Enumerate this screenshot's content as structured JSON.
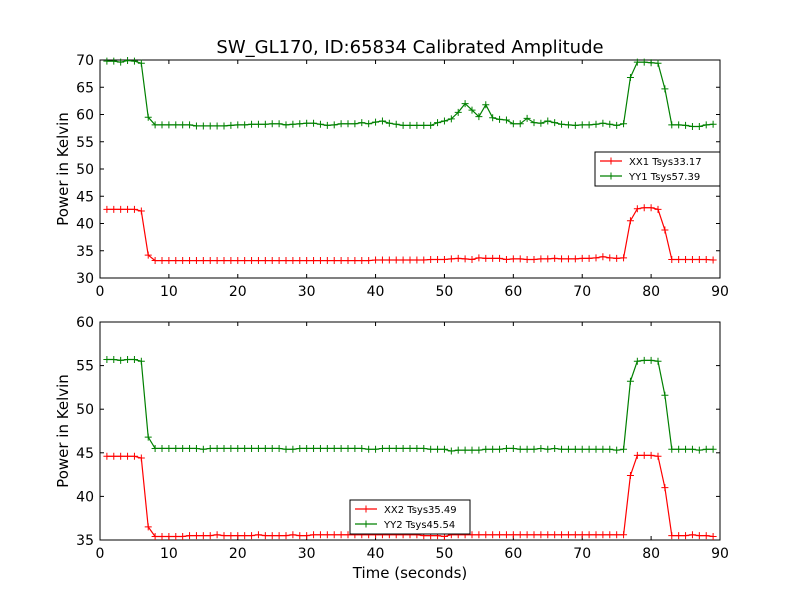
{
  "title": "SW_GL170, ID:65834 Calibrated Amplitude",
  "chart_data": [
    {
      "type": "line",
      "title": "SW_GL170, ID:65834 Calibrated Amplitude",
      "xlabel": "",
      "ylabel": "Power in Kelvin",
      "xlim": [
        0,
        90
      ],
      "ylim": [
        30,
        70
      ],
      "xticks": [
        0,
        10,
        20,
        30,
        40,
        50,
        60,
        70,
        80,
        90
      ],
      "yticks": [
        30,
        35,
        40,
        45,
        50,
        55,
        60,
        65,
        70
      ],
      "grid": false,
      "legend_position": "right",
      "series": [
        {
          "name": "XX1 Tsys33.17",
          "color": "#ff0000",
          "x": [
            1,
            2,
            3,
            4,
            5,
            6,
            7,
            8,
            9,
            10,
            11,
            12,
            13,
            14,
            15,
            16,
            17,
            18,
            19,
            20,
            21,
            22,
            23,
            24,
            25,
            26,
            27,
            28,
            29,
            30,
            31,
            32,
            33,
            34,
            35,
            36,
            37,
            38,
            39,
            40,
            41,
            42,
            43,
            44,
            45,
            46,
            47,
            48,
            49,
            50,
            51,
            52,
            53,
            54,
            55,
            56,
            57,
            58,
            59,
            60,
            61,
            62,
            63,
            64,
            65,
            66,
            67,
            68,
            69,
            70,
            71,
            72,
            73,
            74,
            75,
            76,
            77,
            78,
            79,
            80,
            81,
            82,
            83,
            84,
            85,
            86,
            87,
            88,
            89
          ],
          "y": [
            42.6,
            42.6,
            42.6,
            42.6,
            42.6,
            42.3,
            34.2,
            33.2,
            33.2,
            33.2,
            33.2,
            33.2,
            33.2,
            33.2,
            33.2,
            33.2,
            33.2,
            33.2,
            33.2,
            33.2,
            33.2,
            33.2,
            33.2,
            33.2,
            33.2,
            33.2,
            33.2,
            33.2,
            33.2,
            33.2,
            33.2,
            33.2,
            33.2,
            33.2,
            33.2,
            33.2,
            33.2,
            33.2,
            33.2,
            33.3,
            33.3,
            33.3,
            33.3,
            33.3,
            33.3,
            33.3,
            33.3,
            33.4,
            33.4,
            33.4,
            33.5,
            33.6,
            33.5,
            33.4,
            33.7,
            33.6,
            33.6,
            33.6,
            33.4,
            33.5,
            33.5,
            33.4,
            33.4,
            33.5,
            33.5,
            33.6,
            33.5,
            33.5,
            33.5,
            33.6,
            33.6,
            33.7,
            33.9,
            33.7,
            33.6,
            33.7,
            40.5,
            42.7,
            42.9,
            42.9,
            42.6,
            38.8,
            33.4,
            33.4,
            33.4,
            33.4,
            33.4,
            33.4,
            33.3
          ]
        },
        {
          "name": "YY1 Tsys57.39",
          "color": "#008000",
          "x": [
            1,
            2,
            3,
            4,
            5,
            6,
            7,
            8,
            9,
            10,
            11,
            12,
            13,
            14,
            15,
            16,
            17,
            18,
            19,
            20,
            21,
            22,
            23,
            24,
            25,
            26,
            27,
            28,
            29,
            30,
            31,
            32,
            33,
            34,
            35,
            36,
            37,
            38,
            39,
            40,
            41,
            42,
            43,
            44,
            45,
            46,
            47,
            48,
            49,
            50,
            51,
            52,
            53,
            54,
            55,
            56,
            57,
            58,
            59,
            60,
            61,
            62,
            63,
            64,
            65,
            66,
            67,
            68,
            69,
            70,
            71,
            72,
            73,
            74,
            75,
            76,
            77,
            78,
            79,
            80,
            81,
            82,
            83,
            84,
            85,
            86,
            87,
            88,
            89
          ],
          "y": [
            69.8,
            69.8,
            69.6,
            69.9,
            69.8,
            69.4,
            59.5,
            58.1,
            58.1,
            58.1,
            58.1,
            58.1,
            58.1,
            57.9,
            57.9,
            57.9,
            57.9,
            57.9,
            58.0,
            58.1,
            58.1,
            58.2,
            58.2,
            58.2,
            58.3,
            58.3,
            58.1,
            58.2,
            58.3,
            58.4,
            58.4,
            58.2,
            58.0,
            58.1,
            58.3,
            58.3,
            58.3,
            58.5,
            58.3,
            58.6,
            58.8,
            58.4,
            58.2,
            58.0,
            58.0,
            58.0,
            58.0,
            58.0,
            58.5,
            58.8,
            59.2,
            60.4,
            62.0,
            60.8,
            59.6,
            61.8,
            59.4,
            59.1,
            59.0,
            58.3,
            58.3,
            59.3,
            58.5,
            58.4,
            58.8,
            58.5,
            58.2,
            58.1,
            58.0,
            58.1,
            58.1,
            58.2,
            58.4,
            58.2,
            58.0,
            58.3,
            66.8,
            69.6,
            69.6,
            69.5,
            69.4,
            64.7,
            58.1,
            58.1,
            58.0,
            57.8,
            57.8,
            58.1,
            58.2
          ]
        }
      ]
    },
    {
      "type": "line",
      "title": "",
      "xlabel": "Time (seconds)",
      "ylabel": "Power in Kelvin",
      "xlim": [
        0,
        90
      ],
      "ylim": [
        35,
        60
      ],
      "xticks": [
        0,
        10,
        20,
        30,
        40,
        50,
        60,
        70,
        80,
        90
      ],
      "yticks": [
        35,
        40,
        45,
        50,
        55,
        60
      ],
      "grid": false,
      "legend_position": "bottom-center",
      "series": [
        {
          "name": "XX2 Tsys35.49",
          "color": "#ff0000",
          "x": [
            1,
            2,
            3,
            4,
            5,
            6,
            7,
            8,
            9,
            10,
            11,
            12,
            13,
            14,
            15,
            16,
            17,
            18,
            19,
            20,
            21,
            22,
            23,
            24,
            25,
            26,
            27,
            28,
            29,
            30,
            31,
            32,
            33,
            34,
            35,
            36,
            37,
            38,
            39,
            40,
            41,
            42,
            43,
            44,
            45,
            46,
            47,
            48,
            49,
            50,
            51,
            52,
            53,
            54,
            55,
            56,
            57,
            58,
            59,
            60,
            61,
            62,
            63,
            64,
            65,
            66,
            67,
            68,
            69,
            70,
            71,
            72,
            73,
            74,
            75,
            76,
            77,
            78,
            79,
            80,
            81,
            82,
            83,
            84,
            85,
            86,
            87,
            88,
            89
          ],
          "y": [
            44.6,
            44.6,
            44.6,
            44.6,
            44.6,
            44.4,
            36.5,
            35.4,
            35.4,
            35.4,
            35.4,
            35.4,
            35.5,
            35.5,
            35.5,
            35.5,
            35.6,
            35.5,
            35.5,
            35.5,
            35.5,
            35.5,
            35.6,
            35.5,
            35.5,
            35.5,
            35.5,
            35.6,
            35.5,
            35.5,
            35.6,
            35.6,
            35.6,
            35.6,
            35.6,
            35.6,
            35.6,
            35.6,
            35.6,
            35.6,
            35.6,
            35.6,
            35.6,
            35.6,
            35.6,
            35.6,
            35.5,
            35.5,
            35.5,
            35.4,
            35.6,
            35.6,
            35.6,
            35.6,
            35.6,
            35.6,
            35.6,
            35.6,
            35.6,
            35.6,
            35.6,
            35.6,
            35.6,
            35.6,
            35.6,
            35.6,
            35.6,
            35.6,
            35.6,
            35.6,
            35.6,
            35.6,
            35.6,
            35.6,
            35.6,
            35.6,
            42.4,
            44.7,
            44.7,
            44.7,
            44.6,
            41.0,
            35.5,
            35.5,
            35.5,
            35.6,
            35.5,
            35.5,
            35.4
          ]
        },
        {
          "name": "YY2 Tsys45.54",
          "color": "#008000",
          "x": [
            1,
            2,
            3,
            4,
            5,
            6,
            7,
            8,
            9,
            10,
            11,
            12,
            13,
            14,
            15,
            16,
            17,
            18,
            19,
            20,
            21,
            22,
            23,
            24,
            25,
            26,
            27,
            28,
            29,
            30,
            31,
            32,
            33,
            34,
            35,
            36,
            37,
            38,
            39,
            40,
            41,
            42,
            43,
            44,
            45,
            46,
            47,
            48,
            49,
            50,
            51,
            52,
            53,
            54,
            55,
            56,
            57,
            58,
            59,
            60,
            61,
            62,
            63,
            64,
            65,
            66,
            67,
            68,
            69,
            70,
            71,
            72,
            73,
            74,
            75,
            76,
            77,
            78,
            79,
            80,
            81,
            82,
            83,
            84,
            85,
            86,
            87,
            88,
            89
          ],
          "y": [
            55.7,
            55.7,
            55.6,
            55.7,
            55.7,
            55.5,
            46.8,
            45.5,
            45.5,
            45.5,
            45.5,
            45.5,
            45.5,
            45.5,
            45.4,
            45.5,
            45.5,
            45.5,
            45.5,
            45.5,
            45.5,
            45.5,
            45.5,
            45.5,
            45.5,
            45.5,
            45.4,
            45.4,
            45.5,
            45.5,
            45.5,
            45.5,
            45.5,
            45.5,
            45.5,
            45.5,
            45.5,
            45.5,
            45.4,
            45.4,
            45.5,
            45.5,
            45.5,
            45.5,
            45.5,
            45.5,
            45.5,
            45.4,
            45.4,
            45.4,
            45.2,
            45.3,
            45.3,
            45.3,
            45.3,
            45.4,
            45.4,
            45.4,
            45.5,
            45.5,
            45.4,
            45.4,
            45.4,
            45.5,
            45.4,
            45.5,
            45.4,
            45.4,
            45.4,
            45.4,
            45.4,
            45.4,
            45.4,
            45.4,
            45.3,
            45.4,
            53.2,
            55.5,
            55.6,
            55.6,
            55.5,
            51.6,
            45.4,
            45.4,
            45.4,
            45.4,
            45.3,
            45.4,
            45.4
          ]
        }
      ]
    }
  ]
}
